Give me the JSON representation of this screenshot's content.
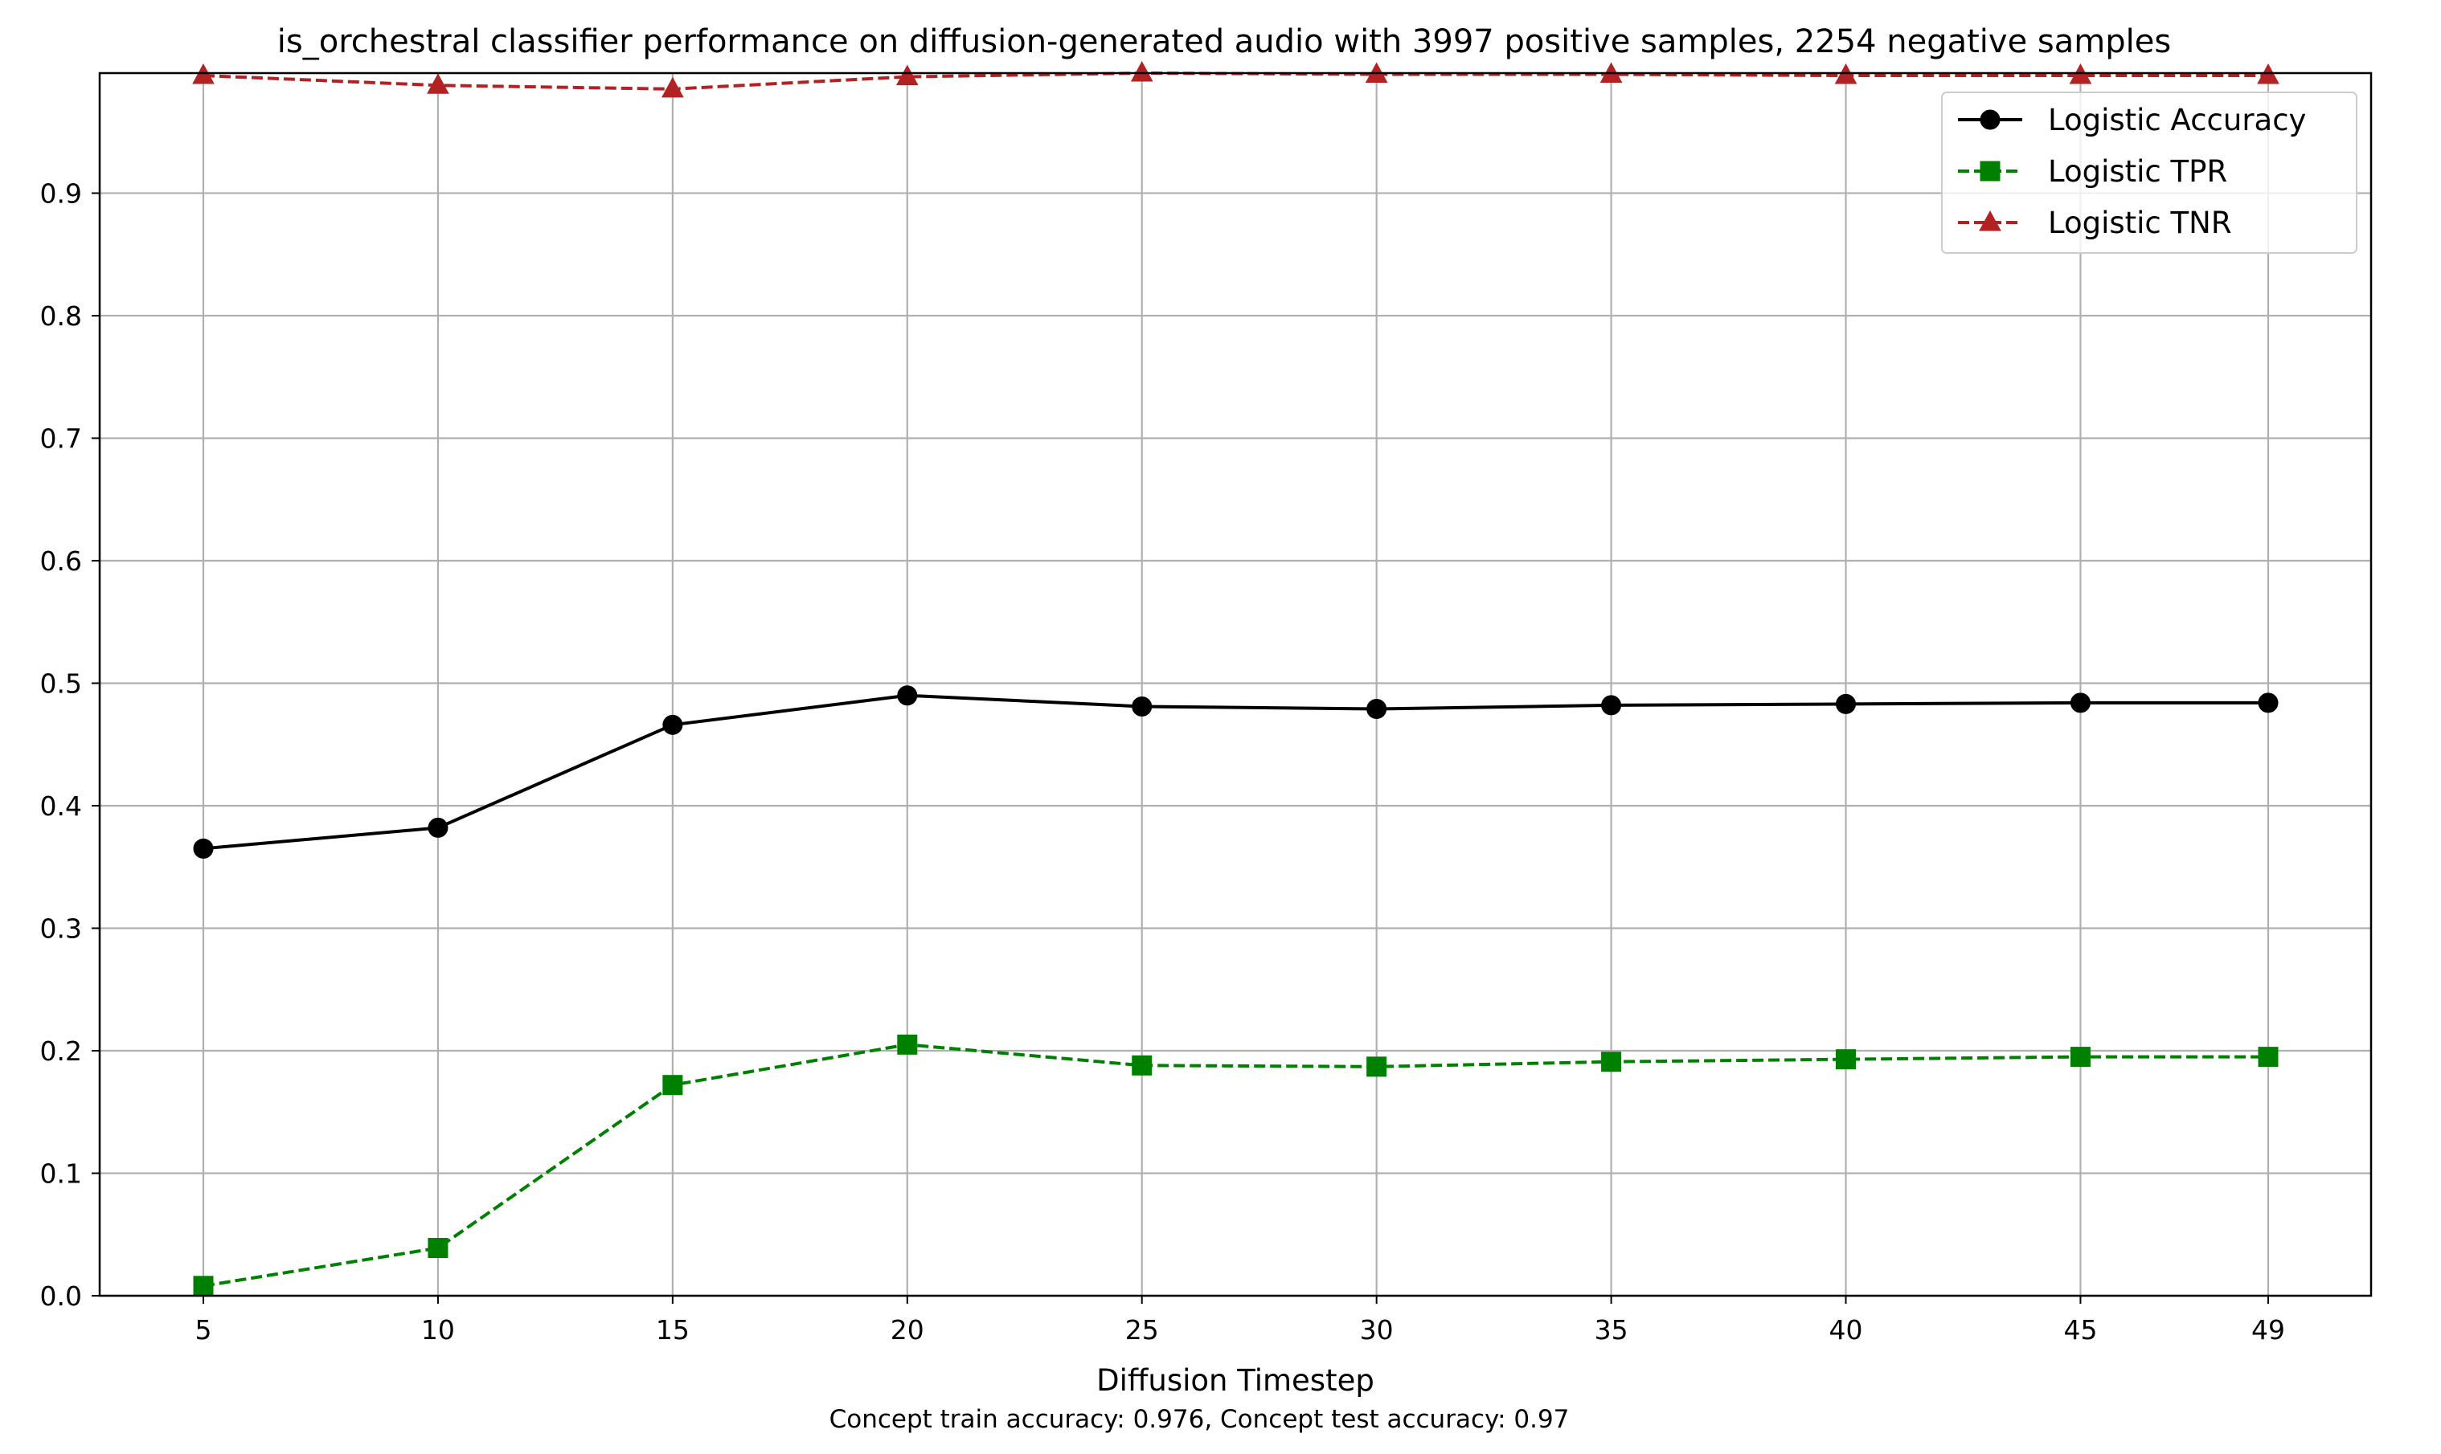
{
  "chart_data": {
    "type": "line",
    "title": "is_orchestral classifier performance on diffusion-generated audio with 3997 positive samples, 2254 negative samples",
    "xlabel": "Diffusion Timestep",
    "ylabel": "",
    "footnote": "Concept train accuracy: 0.976, Concept test accuracy: 0.97",
    "x": [
      5,
      10,
      15,
      20,
      25,
      30,
      35,
      40,
      45,
      49
    ],
    "x_tick_labels": [
      "5",
      "10",
      "15",
      "20",
      "25",
      "30",
      "35",
      "40",
      "45",
      "49"
    ],
    "y_ticks": [
      0.0,
      0.1,
      0.2,
      0.3,
      0.4,
      0.5,
      0.6,
      0.7,
      0.8,
      0.9
    ],
    "y_tick_labels": [
      "0.0",
      "0.1",
      "0.2",
      "0.3",
      "0.4",
      "0.5",
      "0.6",
      "0.7",
      "0.8",
      "0.9"
    ],
    "ylim": [
      0.0,
      0.998
    ],
    "grid": true,
    "legend_position": "top-right",
    "series": [
      {
        "name": "Logistic Accuracy",
        "color": "#000000",
        "line_style": "solid",
        "marker": "circle",
        "values": [
          0.365,
          0.382,
          0.466,
          0.49,
          0.481,
          0.479,
          0.482,
          0.483,
          0.484,
          0.484
        ]
      },
      {
        "name": "Logistic TPR",
        "color": "#008000",
        "line_style": "dashed",
        "marker": "square",
        "values": [
          0.008,
          0.039,
          0.172,
          0.205,
          0.188,
          0.187,
          0.191,
          0.193,
          0.195,
          0.195
        ]
      },
      {
        "name": "Logistic TNR",
        "color": "#b22222",
        "line_style": "dashed",
        "marker": "triangle",
        "values": [
          0.996,
          0.988,
          0.985,
          0.995,
          0.998,
          0.997,
          0.997,
          0.996,
          0.996,
          0.996
        ]
      }
    ]
  }
}
